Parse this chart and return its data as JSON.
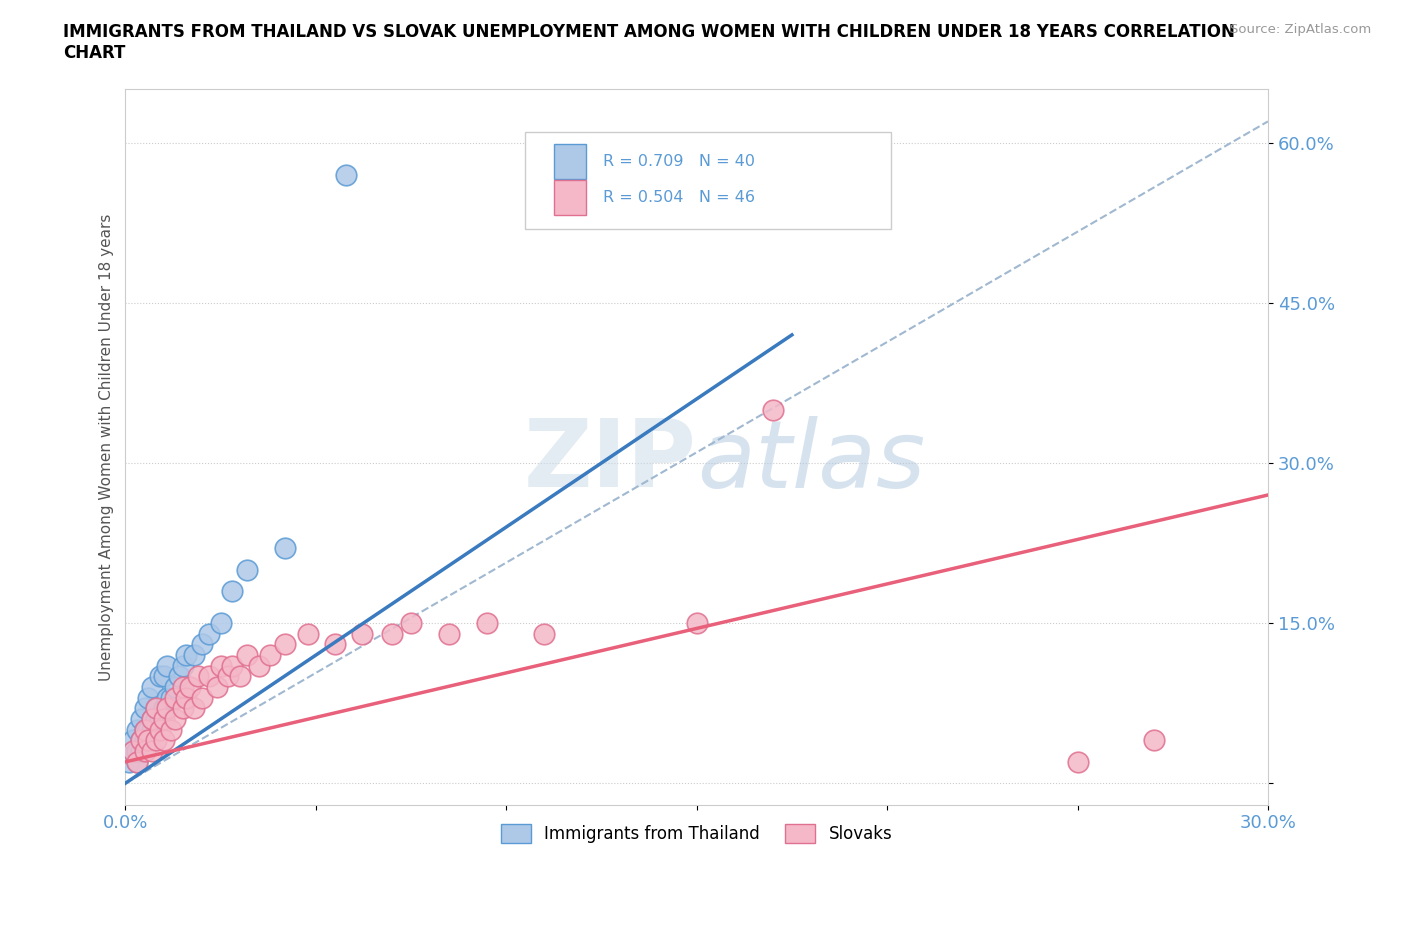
{
  "title_line1": "IMMIGRANTS FROM THAILAND VS SLOVAK UNEMPLOYMENT AMONG WOMEN WITH CHILDREN UNDER 18 YEARS CORRELATION",
  "title_line2": "CHART",
  "source": "Source: ZipAtlas.com",
  "ylabel": "Unemployment Among Women with Children Under 18 years",
  "xlim": [
    0.0,
    0.3
  ],
  "ylim": [
    -0.02,
    0.65
  ],
  "xticks": [
    0.0,
    0.05,
    0.1,
    0.15,
    0.2,
    0.25,
    0.3
  ],
  "xticklabels": [
    "0.0%",
    "",
    "",
    "",
    "",
    "",
    "30.0%"
  ],
  "ytick_positions": [
    0.0,
    0.15,
    0.3,
    0.45,
    0.6
  ],
  "yticklabels": [
    "",
    "15.0%",
    "30.0%",
    "45.0%",
    "60.0%"
  ],
  "legend_r1": "R = 0.709   N = 40",
  "legend_r2": "R = 0.504   N = 46",
  "legend_label1": "Immigrants from Thailand",
  "legend_label2": "Slovaks",
  "color_blue_fill": "#aec8e8",
  "color_blue_edge": "#5b9bd5",
  "color_pink_fill": "#f4b8c8",
  "color_pink_edge": "#e07090",
  "color_blue_line": "#3a7abf",
  "color_pink_line": "#e8607a",
  "color_dashed": "#a0b8d0",
  "color_tick": "#5b9bd5",
  "watermark_color": "#c5d8ee",
  "blue_scatter_x": [
    0.001,
    0.002,
    0.002,
    0.003,
    0.003,
    0.003,
    0.004,
    0.004,
    0.004,
    0.005,
    0.005,
    0.005,
    0.005,
    0.006,
    0.006,
    0.006,
    0.007,
    0.007,
    0.007,
    0.008,
    0.008,
    0.009,
    0.009,
    0.01,
    0.01,
    0.011,
    0.011,
    0.012,
    0.013,
    0.014,
    0.015,
    0.016,
    0.018,
    0.02,
    0.022,
    0.025,
    0.028,
    0.032,
    0.042,
    0.058
  ],
  "blue_scatter_y": [
    0.02,
    0.03,
    0.04,
    0.02,
    0.03,
    0.05,
    0.03,
    0.04,
    0.06,
    0.03,
    0.04,
    0.05,
    0.07,
    0.04,
    0.05,
    0.08,
    0.05,
    0.06,
    0.09,
    0.06,
    0.07,
    0.06,
    0.1,
    0.07,
    0.1,
    0.08,
    0.11,
    0.08,
    0.09,
    0.1,
    0.11,
    0.12,
    0.12,
    0.13,
    0.14,
    0.15,
    0.18,
    0.2,
    0.22,
    0.57
  ],
  "pink_scatter_x": [
    0.002,
    0.003,
    0.004,
    0.005,
    0.005,
    0.006,
    0.007,
    0.007,
    0.008,
    0.008,
    0.009,
    0.01,
    0.01,
    0.011,
    0.012,
    0.013,
    0.013,
    0.015,
    0.015,
    0.016,
    0.017,
    0.018,
    0.019,
    0.02,
    0.022,
    0.024,
    0.025,
    0.027,
    0.028,
    0.03,
    0.032,
    0.035,
    0.038,
    0.042,
    0.048,
    0.055,
    0.062,
    0.07,
    0.075,
    0.085,
    0.095,
    0.11,
    0.15,
    0.17,
    0.25,
    0.27
  ],
  "pink_scatter_y": [
    0.03,
    0.02,
    0.04,
    0.03,
    0.05,
    0.04,
    0.03,
    0.06,
    0.04,
    0.07,
    0.05,
    0.04,
    0.06,
    0.07,
    0.05,
    0.08,
    0.06,
    0.07,
    0.09,
    0.08,
    0.09,
    0.07,
    0.1,
    0.08,
    0.1,
    0.09,
    0.11,
    0.1,
    0.11,
    0.1,
    0.12,
    0.11,
    0.12,
    0.13,
    0.14,
    0.13,
    0.14,
    0.14,
    0.15,
    0.14,
    0.15,
    0.14,
    0.15,
    0.35,
    0.02,
    0.04
  ],
  "blue_line_x": [
    0.0,
    0.175
  ],
  "blue_line_y": [
    0.0,
    0.42
  ],
  "pink_line_x": [
    0.0,
    0.3
  ],
  "pink_line_y": [
    0.02,
    0.27
  ],
  "dashed_line_x": [
    0.0,
    0.3
  ],
  "dashed_line_y": [
    0.0,
    0.62
  ]
}
